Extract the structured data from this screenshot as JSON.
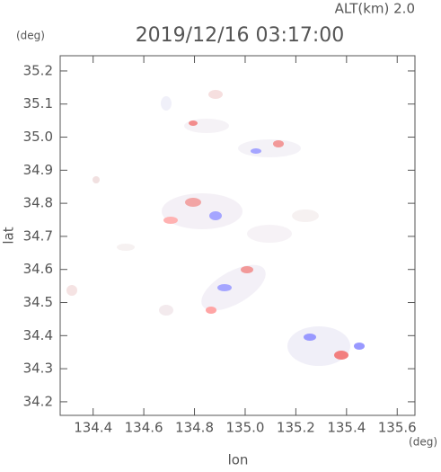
{
  "chart_data": {
    "type": "map",
    "subtitle": "ALT(km) 2.0",
    "title": "2019/12/16 03:17:00",
    "x_label": "lon",
    "y_label": "lat",
    "x_unit": "(deg)",
    "y_unit": "(deg)",
    "xlim": [
      134.27,
      135.67
    ],
    "ylim": [
      34.159,
      35.246
    ],
    "xticks": [
      134.4,
      134.6,
      134.8,
      {
        "value": 135,
        "label": "135.0"
      },
      135.2,
      135.4,
      135.6
    ],
    "yticks": [
      34.2,
      34.3,
      34.4,
      34.5,
      34.6,
      34.7,
      34.8,
      34.9,
      {
        "value": 35,
        "label": "35.0"
      },
      35.1,
      35.2
    ]
  }
}
